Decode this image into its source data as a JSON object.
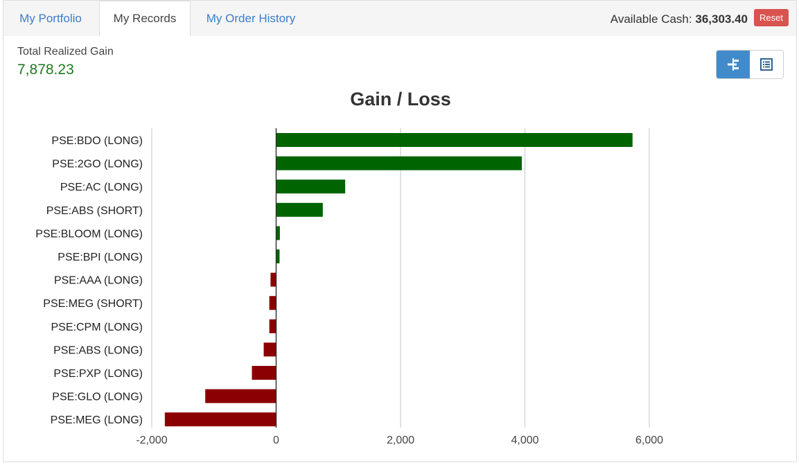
{
  "tabs": [
    {
      "label": "My Portfolio"
    },
    {
      "label": "My Records"
    },
    {
      "label": "My Order History"
    }
  ],
  "header": {
    "cash_label": "Available Cash:",
    "cash_value": "36,303.40",
    "reset_label": "Reset"
  },
  "summary": {
    "gain_label": "Total Realized Gain",
    "gain_value": "7,878.23"
  },
  "view_toggle": {
    "active": "chart",
    "buttons": [
      {
        "icon": "bar-chart-icon",
        "active": true
      },
      {
        "icon": "list-icon",
        "active": false
      }
    ]
  },
  "colors": {
    "positive": "#006400",
    "negative": "#8b0000",
    "accent": "#428bca",
    "reset": "#d9534f"
  },
  "chart_data": {
    "type": "bar",
    "orientation": "horizontal",
    "title": "Gain / Loss",
    "categories": [
      "PSE:BDO (LONG)",
      "PSE:2GO (LONG)",
      "PSE:AC (LONG)",
      "PSE:ABS (SHORT)",
      "PSE:BLOOM (LONG)",
      "PSE:BPI (LONG)",
      "PSE:AAA (LONG)",
      "PSE:MEG (SHORT)",
      "PSE:CPM (LONG)",
      "PSE:ABS (LONG)",
      "PSE:PXP (LONG)",
      "PSE:GLO (LONG)",
      "PSE:MEG (LONG)"
    ],
    "values": [
      5730,
      3950,
      1110,
      750,
      60,
      55,
      -90,
      -110,
      -110,
      -200,
      -390,
      -1140,
      -1790
    ],
    "xlim": [
      -2000,
      6000
    ],
    "xticks": [
      -2000,
      0,
      2000,
      4000,
      6000
    ],
    "xtick_labels": [
      "-2,000",
      "0",
      "2,000",
      "4,000",
      "6,000"
    ],
    "grid": true,
    "legend": "none"
  }
}
